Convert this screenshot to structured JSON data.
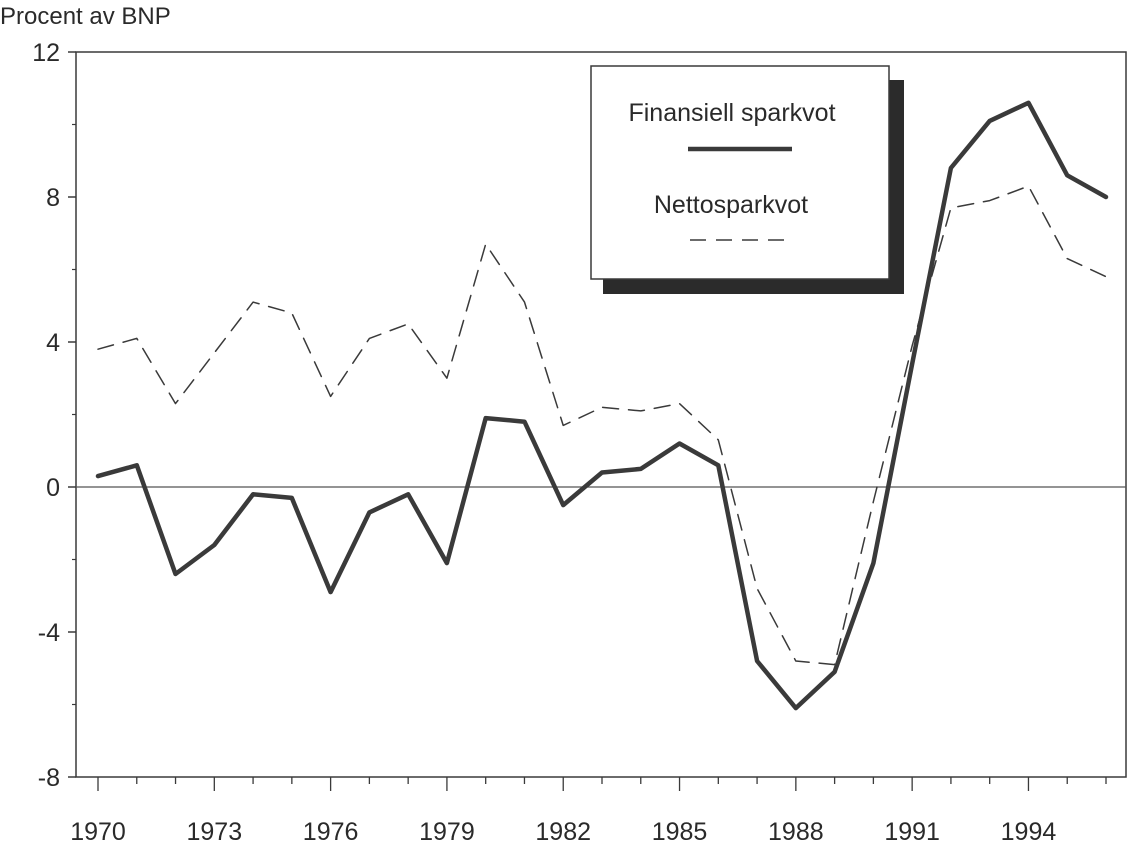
{
  "chart_data": {
    "type": "line",
    "ylabel": "Procent av BNP",
    "ylim": [
      -8,
      12
    ],
    "yticks": [
      12,
      8,
      4,
      0,
      -4,
      -8
    ],
    "ytick_labels": [
      "12",
      "8",
      "4",
      "0",
      "-4",
      "-8"
    ],
    "xlim": [
      1970,
      1996
    ],
    "xtick_labels": [
      "1970",
      "1973",
      "1976",
      "1979",
      "1982",
      "1985",
      "1988",
      "1991",
      "1994"
    ],
    "xticks": [
      1970,
      1973,
      1976,
      1979,
      1982,
      1985,
      1988,
      1991,
      1994
    ],
    "zero_line": true,
    "legend_placement": "top-right",
    "x": [
      1970,
      1971,
      1972,
      1973,
      1974,
      1975,
      1976,
      1977,
      1978,
      1979,
      1980,
      1981,
      1982,
      1983,
      1984,
      1985,
      1986,
      1987,
      1988,
      1989,
      1990,
      1991,
      1992,
      1993,
      1994,
      1995,
      1996
    ],
    "series": [
      {
        "name": "Finansiell sparkvot",
        "style": "solid-thick",
        "color": "#3a3a3a",
        "values": [
          0.3,
          0.6,
          -2.4,
          -1.6,
          -0.2,
          -0.3,
          -2.9,
          -0.7,
          -0.2,
          -2.1,
          1.9,
          1.8,
          -0.5,
          0.4,
          0.5,
          1.2,
          0.6,
          -4.8,
          -6.1,
          -5.1,
          -2.1,
          3.4,
          8.8,
          10.1,
          10.6,
          8.6,
          8.0
        ]
      },
      {
        "name": "Nettosparkvot",
        "style": "dashed-thin",
        "color": "#3a3a3a",
        "values": [
          3.8,
          4.1,
          2.3,
          3.7,
          5.1,
          4.8,
          2.5,
          4.1,
          4.5,
          3.0,
          6.7,
          5.1,
          1.7,
          2.2,
          2.1,
          2.3,
          1.3,
          -2.8,
          -4.8,
          -4.9,
          -0.4,
          3.9,
          7.7,
          7.9,
          8.3,
          6.3,
          5.8
        ]
      }
    ]
  }
}
